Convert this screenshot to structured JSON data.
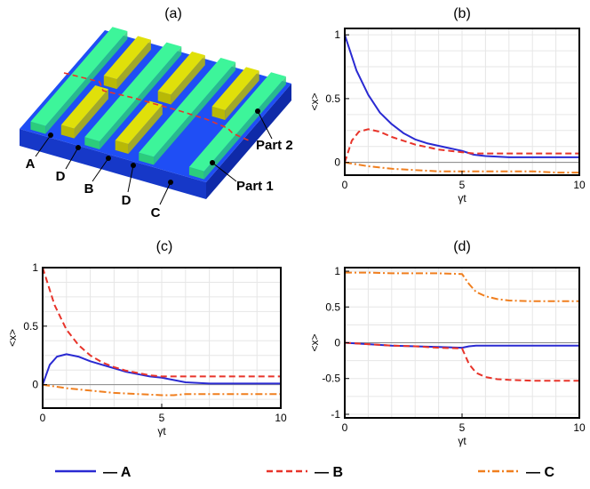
{
  "panel_labels": [
    "(a)",
    "(b)",
    "(c)",
    "(d)"
  ],
  "device": {
    "strip_labels": [
      "A",
      "D",
      "B",
      "D",
      "C"
    ],
    "part_labels": [
      "Part 2",
      "Part 1"
    ],
    "colors": {
      "substrate": "#1f4ef5",
      "strip": "#3df59a",
      "pad": "#e0e00a",
      "cut": "#e8342a"
    }
  },
  "legend": [
    {
      "name": "A",
      "label": "— A",
      "color": "#2a2ad2",
      "dash": "solid"
    },
    {
      "name": "B",
      "label": "— B",
      "color": "#e8342a",
      "dash": "dashed"
    },
    {
      "name": "C",
      "label": "— C",
      "color": "#f07f1f",
      "dash": "dashdot"
    }
  ],
  "chart_data": [
    {
      "panel": "(b)",
      "type": "line",
      "xlabel": "γt",
      "ylabel": "<x>",
      "xlim": [
        0,
        10
      ],
      "ylim": [
        -0.1,
        1.05
      ],
      "xticks": [
        0,
        5,
        10
      ],
      "xtick_labels": [
        "0",
        "5",
        "10"
      ],
      "yticks": [
        0,
        0.5,
        1
      ],
      "ytick_labels": [
        "0",
        "0.5",
        "1"
      ],
      "grid": true,
      "series": [
        {
          "name": "A",
          "x": [
            0,
            0.5,
            1,
            1.5,
            2,
            2.5,
            3,
            3.5,
            4,
            4.5,
            5,
            5.5,
            6,
            7,
            8,
            9,
            10
          ],
          "y": [
            1.0,
            0.72,
            0.53,
            0.39,
            0.3,
            0.23,
            0.18,
            0.15,
            0.13,
            0.11,
            0.09,
            0.06,
            0.05,
            0.04,
            0.04,
            0.04,
            0.04
          ]
        },
        {
          "name": "B",
          "x": [
            0,
            0.3,
            0.6,
            1,
            1.5,
            2,
            2.5,
            3,
            3.5,
            4,
            4.5,
            5,
            5.5,
            6,
            7,
            8,
            9,
            10
          ],
          "y": [
            0.0,
            0.17,
            0.24,
            0.26,
            0.24,
            0.2,
            0.17,
            0.14,
            0.12,
            0.1,
            0.09,
            0.08,
            0.07,
            0.07,
            0.07,
            0.07,
            0.07,
            0.07
          ]
        },
        {
          "name": "C",
          "x": [
            0,
            1,
            2,
            3,
            4,
            5,
            6,
            7,
            8,
            9,
            10
          ],
          "y": [
            0.0,
            -0.03,
            -0.05,
            -0.06,
            -0.07,
            -0.07,
            -0.07,
            -0.07,
            -0.07,
            -0.08,
            -0.08
          ]
        }
      ]
    },
    {
      "panel": "(c)",
      "type": "line",
      "xlabel": "γt",
      "ylabel": "<x>",
      "xlim": [
        0,
        10
      ],
      "ylim": [
        -0.2,
        1.0
      ],
      "xticks": [
        0,
        5,
        10
      ],
      "xtick_labels": [
        "0",
        "5",
        "10"
      ],
      "yticks": [
        0,
        0.5,
        1
      ],
      "ytick_labels": [
        "0",
        "0.5",
        "1"
      ],
      "grid": true,
      "series": [
        {
          "name": "A",
          "x": [
            0,
            0.3,
            0.6,
            1,
            1.5,
            2,
            2.5,
            3,
            3.5,
            4,
            4.5,
            5,
            5.5,
            6,
            7,
            8,
            9,
            10
          ],
          "y": [
            0.0,
            0.17,
            0.24,
            0.26,
            0.24,
            0.2,
            0.17,
            0.14,
            0.11,
            0.09,
            0.07,
            0.06,
            0.04,
            0.02,
            0.01,
            0.01,
            0.01,
            0.01
          ]
        },
        {
          "name": "B",
          "x": [
            0,
            0.5,
            1,
            1.5,
            2,
            2.5,
            3,
            3.5,
            4,
            4.5,
            5,
            5.5,
            6,
            7,
            8,
            9,
            10
          ],
          "y": [
            1.0,
            0.68,
            0.47,
            0.34,
            0.25,
            0.19,
            0.15,
            0.12,
            0.1,
            0.08,
            0.07,
            0.07,
            0.07,
            0.07,
            0.07,
            0.07,
            0.07
          ]
        },
        {
          "name": "C",
          "x": [
            0,
            1,
            2,
            3,
            4,
            5,
            5.5,
            6,
            7,
            8,
            9,
            10
          ],
          "y": [
            0.0,
            -0.03,
            -0.05,
            -0.07,
            -0.08,
            -0.09,
            -0.09,
            -0.08,
            -0.08,
            -0.08,
            -0.08,
            -0.08
          ]
        }
      ]
    },
    {
      "panel": "(d)",
      "type": "line",
      "xlabel": "γt",
      "ylabel": "<x>",
      "xlim": [
        0,
        10
      ],
      "ylim": [
        -1.05,
        1.05
      ],
      "xticks": [
        0,
        5,
        10
      ],
      "xtick_labels": [
        "0",
        "5",
        "10"
      ],
      "yticks": [
        -1,
        -0.5,
        0,
        0.5,
        1
      ],
      "ytick_labels": [
        "-1",
        "-0.5",
        "0",
        "0.5",
        "1"
      ],
      "grid": true,
      "series": [
        {
          "name": "A",
          "x": [
            0,
            1,
            2,
            3,
            4,
            5,
            5.3,
            5.6,
            6,
            7,
            8,
            9,
            10
          ],
          "y": [
            0.0,
            -0.02,
            -0.04,
            -0.05,
            -0.06,
            -0.07,
            -0.05,
            -0.04,
            -0.04,
            -0.04,
            -0.04,
            -0.04,
            -0.04
          ]
        },
        {
          "name": "B",
          "x": [
            0,
            1,
            2,
            3,
            4,
            5,
            5.3,
            5.6,
            6,
            6.5,
            7,
            8,
            9,
            10
          ],
          "y": [
            0.0,
            -0.02,
            -0.04,
            -0.05,
            -0.07,
            -0.08,
            -0.3,
            -0.42,
            -0.48,
            -0.51,
            -0.52,
            -0.53,
            -0.53,
            -0.53
          ]
        },
        {
          "name": "C",
          "x": [
            0,
            1,
            2,
            3,
            4,
            5,
            5.3,
            5.6,
            6,
            6.5,
            7,
            8,
            9,
            10
          ],
          "y": [
            0.98,
            0.98,
            0.97,
            0.97,
            0.97,
            0.96,
            0.82,
            0.71,
            0.65,
            0.61,
            0.59,
            0.58,
            0.58,
            0.58
          ]
        }
      ]
    }
  ]
}
